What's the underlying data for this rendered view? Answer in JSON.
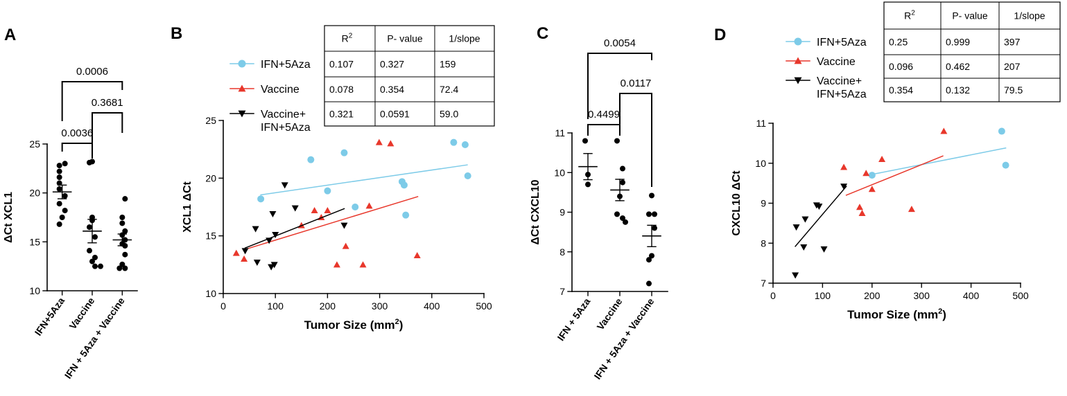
{
  "colors": {
    "ifn": "#7dcbe8",
    "vaccine": "#e8372b",
    "combo": "#000000"
  },
  "panels": {
    "a": "A",
    "b": "B",
    "c": "C",
    "d": "D"
  },
  "chart_data": [
    {
      "id": "A",
      "type": "scatter",
      "ylabel": "ΔCt XCL1",
      "ylim": [
        10,
        25
      ],
      "yticks": [
        10,
        15,
        20,
        25
      ],
      "categories": [
        "IFN+5Aza",
        "Vaccine",
        "IFN + 5Aza + Vaccine"
      ],
      "series": [
        {
          "name": "IFN+5Aza",
          "values": [
            23.0,
            22.8,
            22.2,
            21.6,
            21.0,
            20.4,
            19.7,
            18.9,
            18.2,
            17.5,
            16.8
          ],
          "mean": 20.1,
          "sem": 0.7
        },
        {
          "name": "Vaccine",
          "values": [
            23.2,
            23.1,
            17.5,
            17.2,
            16.5,
            15.5,
            14.1,
            13.4,
            13.0,
            12.5,
            12.5
          ],
          "mean": 16.1,
          "sem": 1.2
        },
        {
          "name": "IFN + 5Aza + Vaccine",
          "values": [
            19.4,
            17.5,
            16.9,
            16.1,
            15.7,
            15.2,
            14.8,
            14.6,
            13.7,
            12.7,
            12.3,
            12.3
          ],
          "mean": 15.2,
          "sem": 0.6
        }
      ],
      "comparisons": [
        {
          "from": "IFN+5Aza",
          "to": "Vaccine",
          "p": "0.0036"
        },
        {
          "from": "Vaccine",
          "to": "IFN + 5Aza + Vaccine",
          "p": "0.3681"
        },
        {
          "from": "IFN+5Aza",
          "to": "IFN + 5Aza + Vaccine",
          "p": "0.0006"
        }
      ]
    },
    {
      "id": "B",
      "type": "scatter",
      "xlabel": "Tumor Size (mm",
      "xlabel_sup": "2",
      "xlabel_end": ")",
      "ylabel": "XCL1 ΔCt",
      "xlim": [
        0,
        500
      ],
      "ylim": [
        10,
        25
      ],
      "xticks": [
        0,
        100,
        200,
        300,
        400,
        500
      ],
      "yticks": [
        10,
        15,
        20,
        25
      ],
      "series": [
        {
          "name": "IFN+5Aza",
          "marker": "circle",
          "points": [
            [
              72,
              18.2
            ],
            [
              168,
              21.6
            ],
            [
              200,
              18.9
            ],
            [
              232,
              22.2
            ],
            [
              253,
              17.5
            ],
            [
              343,
              19.7
            ],
            [
              347,
              19.4
            ],
            [
              350,
              16.8
            ],
            [
              442,
              23.1
            ],
            [
              464,
              22.9
            ],
            [
              469,
              20.2
            ]
          ],
          "fit": [
            [
              72,
              18.55
            ],
            [
              468,
              21.15
            ]
          ]
        },
        {
          "name": "Vaccine",
          "marker": "triangle-up",
          "points": [
            [
              25,
              13.5
            ],
            [
              40,
              13.0
            ],
            [
              150,
              15.9
            ],
            [
              175,
              17.2
            ],
            [
              188,
              16.6
            ],
            [
              200,
              17.2
            ],
            [
              218,
              12.5
            ],
            [
              235,
              14.1
            ],
            [
              268,
              12.5
            ],
            [
              280,
              17.6
            ],
            [
              299,
              23.1
            ],
            [
              321,
              23.0
            ],
            [
              372,
              13.3
            ]
          ],
          "fit": [
            [
              40,
              13.8
            ],
            [
              373,
              18.4
            ]
          ]
        },
        {
          "name": "Vaccine+\nIFN+5Aza",
          "marker": "triangle-down",
          "points": [
            [
              42,
              13.7
            ],
            [
              62,
              15.6
            ],
            [
              65,
              12.7
            ],
            [
              88,
              14.6
            ],
            [
              92,
              12.3
            ],
            [
              95,
              16.9
            ],
            [
              98,
              12.5
            ],
            [
              100,
              15.1
            ],
            [
              118,
              19.4
            ],
            [
              138,
              17.4
            ],
            [
              232,
              15.9
            ]
          ],
          "fit": [
            [
              42,
              13.95
            ],
            [
              232,
              17.35
            ]
          ]
        }
      ],
      "table": {
        "headers": [
          "R2",
          "P- value",
          "1/slope"
        ],
        "rows": [
          [
            "0.107",
            "0.327",
            "159"
          ],
          [
            "0.078",
            "0.354",
            "72.4"
          ],
          [
            "0.321",
            "0.0591",
            "59.0"
          ]
        ]
      }
    },
    {
      "id": "C",
      "type": "scatter",
      "ylabel": "ΔCt CXCL10",
      "ylim": [
        7,
        11
      ],
      "yticks": [
        7,
        8,
        9,
        10,
        11
      ],
      "categories": [
        "IFN + 5Aza",
        "Vaccine",
        "IFN + 5Aza + Vaccine"
      ],
      "series": [
        {
          "name": "IFN + 5Aza",
          "values": [
            10.8,
            9.95,
            9.7
          ],
          "mean": 10.15,
          "sem": 0.33
        },
        {
          "name": "Vaccine",
          "values": [
            10.8,
            10.1,
            9.75,
            9.4,
            8.95,
            8.85,
            8.75
          ],
          "mean": 9.56,
          "sem": 0.27
        },
        {
          "name": "IFN + 5Aza + Vaccine",
          "values": [
            9.42,
            8.95,
            8.95,
            8.6,
            7.9,
            7.8,
            7.2
          ],
          "mean": 8.4,
          "sem": 0.27
        }
      ],
      "comparisons": [
        {
          "from": "IFN + 5Aza",
          "to": "Vaccine",
          "p": "0.4499"
        },
        {
          "from": "Vaccine",
          "to": "IFN + 5Aza + Vaccine",
          "p": "0.0117"
        },
        {
          "from": "IFN + 5Aza",
          "to": "IFN + 5Aza + Vaccine",
          "p": "0.0054"
        }
      ]
    },
    {
      "id": "D",
      "type": "scatter",
      "xlabel": "Tumor Size (mm",
      "xlabel_sup": "2",
      "xlabel_end": ")",
      "ylabel": "CXCL10 ΔCt",
      "xlim": [
        0,
        500
      ],
      "ylim": [
        7,
        11
      ],
      "xticks": [
        0,
        100,
        200,
        300,
        400,
        500
      ],
      "yticks": [
        7,
        8,
        9,
        10,
        11
      ],
      "series": [
        {
          "name": "IFN+5Aza",
          "marker": "circle",
          "points": [
            [
              200,
              9.7
            ],
            [
              462,
              10.8
            ],
            [
              470,
              9.95
            ]
          ],
          "fit": [
            [
              200,
              9.72
            ],
            [
              470,
              10.38
            ]
          ]
        },
        {
          "name": "Vaccine",
          "marker": "triangle-up",
          "points": [
            [
              143,
              9.9
            ],
            [
              175,
              8.9
            ],
            [
              180,
              8.75
            ],
            [
              188,
              9.75
            ],
            [
              200,
              9.35
            ],
            [
              220,
              10.1
            ],
            [
              280,
              8.85
            ],
            [
              345,
              10.8
            ]
          ],
          "fit": [
            [
              148,
              9.2
            ],
            [
              343,
              10.18
            ]
          ]
        },
        {
          "name": "Vaccine+\nIFN+5Aza",
          "marker": "triangle-down",
          "points": [
            [
              45,
              7.2
            ],
            [
              47,
              8.4
            ],
            [
              62,
              7.9
            ],
            [
              65,
              8.6
            ],
            [
              88,
              8.95
            ],
            [
              93,
              8.92
            ],
            [
              103,
              7.85
            ],
            [
              143,
              9.42
            ]
          ],
          "fit": [
            [
              45,
              7.92
            ],
            [
              148,
              9.42
            ]
          ]
        }
      ],
      "table": {
        "headers": [
          "R2",
          "P- value",
          "1/slope"
        ],
        "rows": [
          [
            "0.25",
            "0.999",
            "397"
          ],
          [
            "0.096",
            "0.462",
            "207"
          ],
          [
            "0.354",
            "0.132",
            "79.5"
          ]
        ]
      }
    }
  ]
}
